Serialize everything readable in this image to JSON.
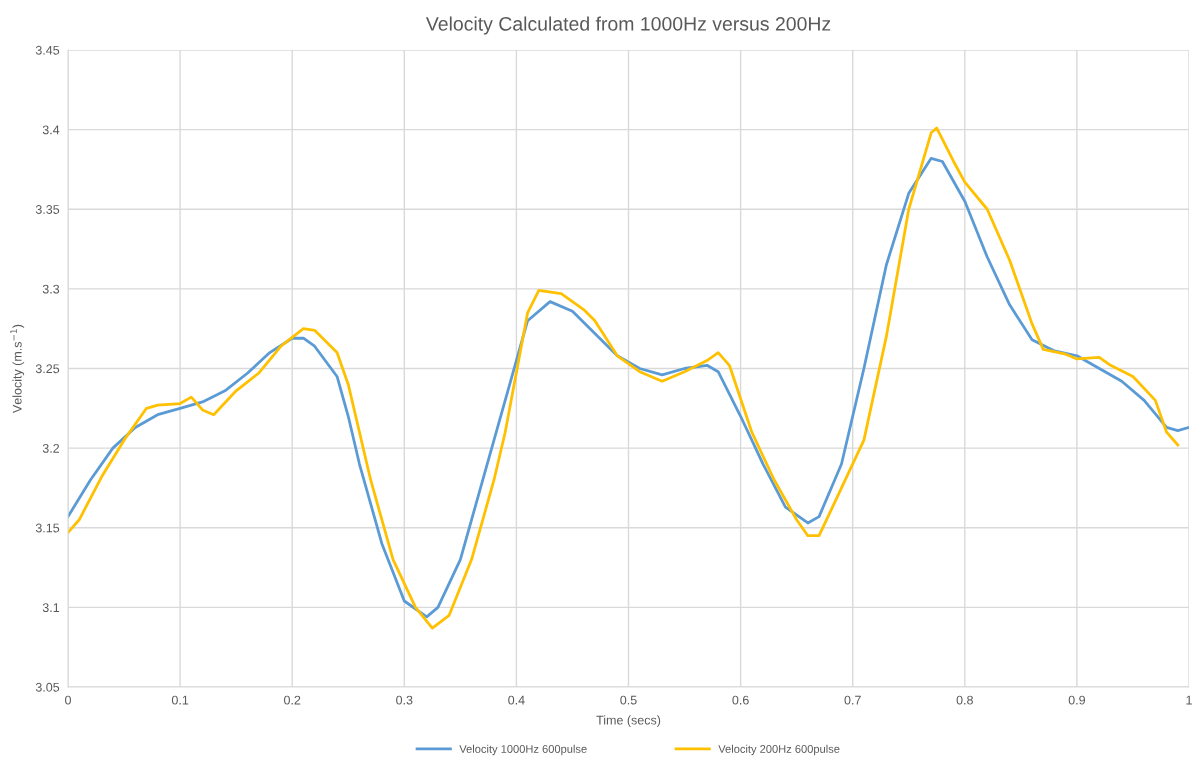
{
  "chart_data": {
    "type": "line",
    "title": "Velocity Calculated from 1000Hz versus 200Hz",
    "xlabel": "Time (secs)",
    "ylabel": "Velocity (m.s$^{−1}$)",
    "xlim": [
      0,
      1
    ],
    "ylim": [
      3.05,
      3.45
    ],
    "xticks": [
      0,
      0.1,
      0.2,
      0.3,
      0.4,
      0.5,
      0.6,
      0.7,
      0.8,
      0.9,
      1
    ],
    "yticks": [
      3.05,
      {
        "value": 3.1,
        "label": "3.1"
      },
      3.15,
      {
        "value": 3.2,
        "label": "3.2"
      },
      3.25,
      {
        "value": 3.3,
        "label": "3.3"
      },
      3.35,
      {
        "value": 3.4,
        "label": "3.4"
      },
      3.45
    ],
    "grid": true,
    "legend": "bottom",
    "marker": "none",
    "line_style": "solid",
    "series": [
      {
        "name": "Velocity 1000Hz 600pulse",
        "color": "#5b9bd5",
        "x": [
          0,
          0.02,
          0.04,
          0.06,
          0.08,
          0.1,
          0.12,
          0.14,
          0.16,
          0.18,
          0.2,
          0.21,
          0.22,
          0.24,
          0.25,
          0.26,
          0.28,
          0.3,
          0.32,
          0.33,
          0.35,
          0.37,
          0.39,
          0.41,
          0.43,
          0.45,
          0.47,
          0.49,
          0.51,
          0.53,
          0.55,
          0.57,
          0.58,
          0.6,
          0.62,
          0.64,
          0.66,
          0.67,
          0.69,
          0.71,
          0.73,
          0.75,
          0.77,
          0.78,
          0.8,
          0.82,
          0.84,
          0.86,
          0.88,
          0.9,
          0.92,
          0.94,
          0.96,
          0.98,
          0.99,
          1
        ],
        "values": [
          3.157,
          3.18,
          3.2,
          3.213,
          3.221,
          3.225,
          3.229,
          3.236,
          3.247,
          3.26,
          3.269,
          3.269,
          3.264,
          3.245,
          3.22,
          3.19,
          3.14,
          3.104,
          3.094,
          3.1,
          3.13,
          3.18,
          3.23,
          3.28,
          3.292,
          3.286,
          3.272,
          3.258,
          3.25,
          3.246,
          3.25,
          3.252,
          3.248,
          3.22,
          3.19,
          3.163,
          3.153,
          3.157,
          3.19,
          3.25,
          3.315,
          3.36,
          3.382,
          3.38,
          3.355,
          3.32,
          3.29,
          3.268,
          3.261,
          3.258,
          3.25,
          3.242,
          3.23,
          3.213,
          3.211,
          3.213
        ]
      },
      {
        "name": "Velocity 200Hz 600pulse",
        "color": "#ffc000",
        "x": [
          0,
          0.01,
          0.03,
          0.05,
          0.07,
          0.08,
          0.1,
          0.11,
          0.12,
          0.13,
          0.15,
          0.17,
          0.19,
          0.21,
          0.22,
          0.24,
          0.25,
          0.27,
          0.29,
          0.31,
          0.325,
          0.34,
          0.36,
          0.38,
          0.39,
          0.41,
          0.42,
          0.44,
          0.46,
          0.47,
          0.49,
          0.51,
          0.53,
          0.55,
          0.57,
          0.58,
          0.59,
          0.61,
          0.63,
          0.65,
          0.66,
          0.67,
          0.69,
          0.71,
          0.73,
          0.75,
          0.77,
          0.775,
          0.79,
          0.8,
          0.82,
          0.84,
          0.86,
          0.87,
          0.89,
          0.9,
          0.92,
          0.93,
          0.95,
          0.97,
          0.98,
          0.99
        ],
        "values": [
          3.147,
          3.155,
          3.182,
          3.205,
          3.225,
          3.227,
          3.228,
          3.232,
          3.224,
          3.221,
          3.236,
          3.247,
          3.264,
          3.275,
          3.274,
          3.26,
          3.24,
          3.18,
          3.13,
          3.1,
          3.087,
          3.095,
          3.13,
          3.18,
          3.21,
          3.285,
          3.299,
          3.297,
          3.287,
          3.28,
          3.258,
          3.248,
          3.242,
          3.248,
          3.255,
          3.26,
          3.252,
          3.21,
          3.18,
          3.155,
          3.145,
          3.145,
          3.175,
          3.205,
          3.27,
          3.35,
          3.398,
          3.401,
          3.38,
          3.367,
          3.35,
          3.318,
          3.278,
          3.262,
          3.259,
          3.256,
          3.257,
          3.252,
          3.245,
          3.23,
          3.21,
          3.202
        ]
      }
    ]
  }
}
